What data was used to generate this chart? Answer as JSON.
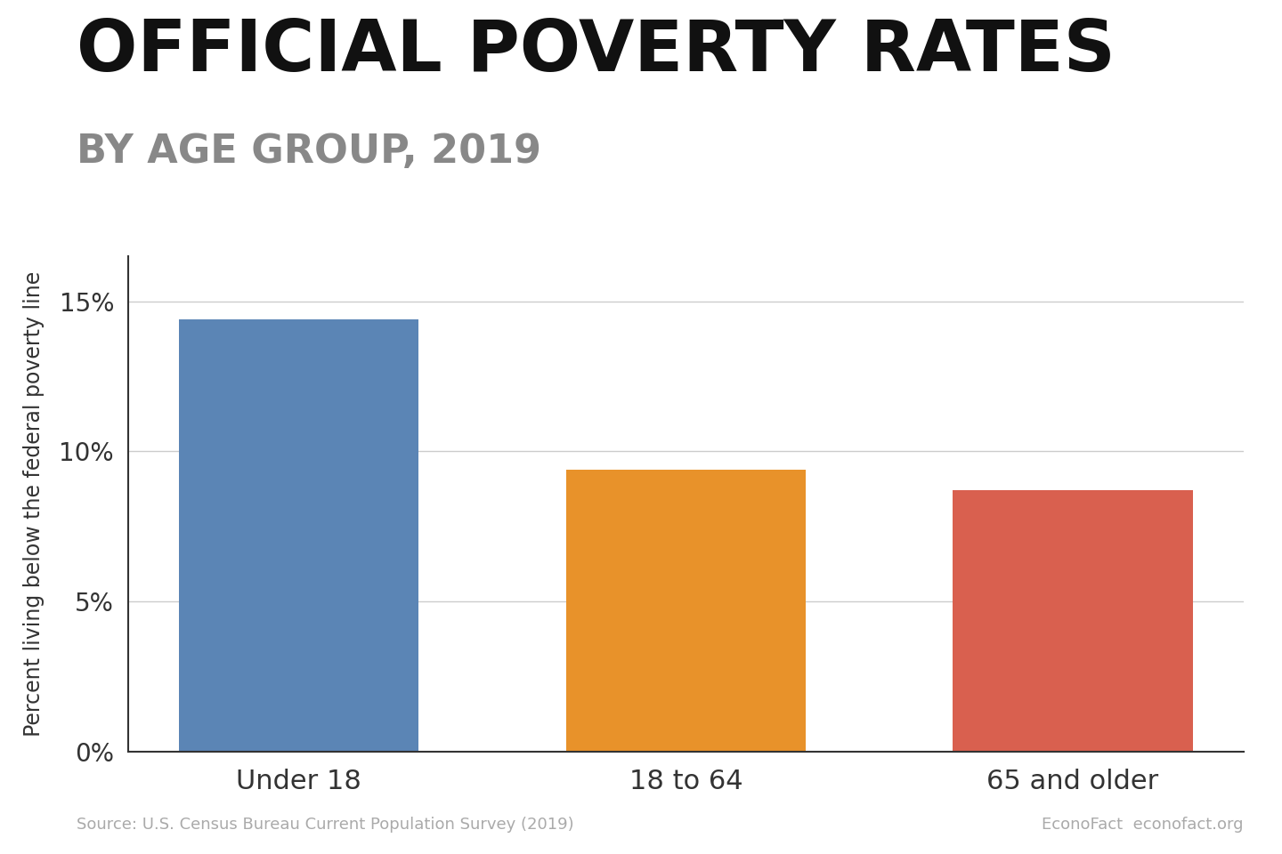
{
  "title_main": "OFFICIAL POVERTY RATES",
  "title_sub": "BY AGE GROUP, 2019",
  "categories": [
    "Under 18",
    "18 to 64",
    "65 and older"
  ],
  "values": [
    14.4,
    9.4,
    8.7
  ],
  "bar_colors": [
    "#5b85b5",
    "#e8922a",
    "#d9604f"
  ],
  "ylabel": "Percent living below the federal poverty line",
  "yticks": [
    0,
    5,
    10,
    15
  ],
  "ytick_labels": [
    "0%",
    "5%",
    "10%",
    "15%"
  ],
  "ylim": [
    0,
    16.5
  ],
  "source_text": "Source: U.S. Census Bureau Current Population Survey (2019)",
  "credit_text": "EconoFact  econofact.org",
  "bg_color": "#ffffff",
  "title_main_color": "#111111",
  "title_sub_color": "#888888",
  "axis_label_color": "#333333",
  "tick_label_color": "#333333",
  "source_color": "#aaaaaa",
  "grid_color": "#cccccc",
  "title_main_fontsize": 58,
  "title_sub_fontsize": 32,
  "ylabel_fontsize": 17,
  "tick_fontsize": 20,
  "xtick_fontsize": 22,
  "source_fontsize": 13,
  "bar_width": 0.62
}
